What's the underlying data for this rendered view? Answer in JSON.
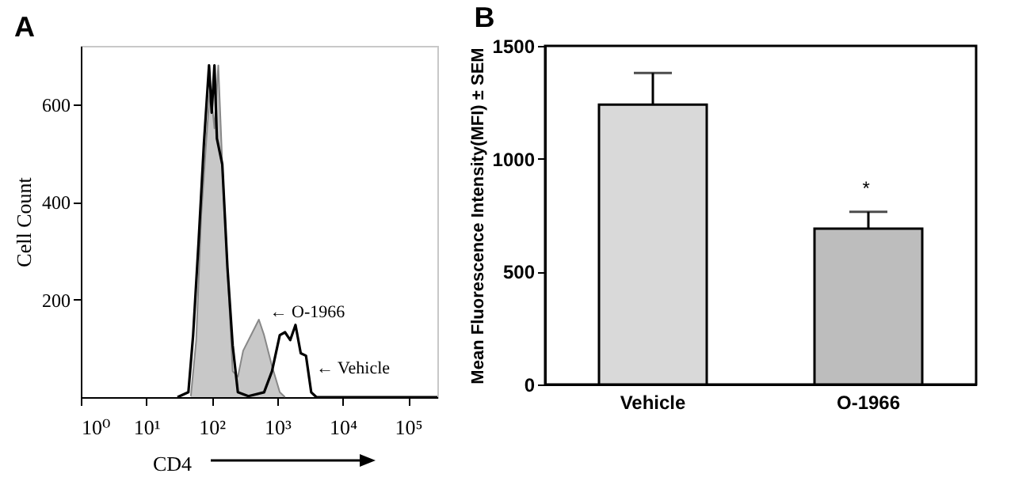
{
  "chart_data": [
    {
      "type": "line",
      "title": "A",
      "xlabel": "CD4",
      "ylabel": "Cell Count",
      "log": "x",
      "xlim": [
        1,
        280000
      ],
      "ylim": [
        0,
        720
      ],
      "xticks": [
        {
          "value": 1,
          "label": "10⁰"
        },
        {
          "value": 10,
          "label": "10¹"
        },
        {
          "value": 100,
          "label": "10²"
        },
        {
          "value": 1000,
          "label": "10³"
        },
        {
          "value": 10000,
          "label": "10⁴"
        },
        {
          "value": 100000,
          "label": "10⁵"
        }
      ],
      "yticks": [
        200,
        400,
        600
      ],
      "series": [
        {
          "type": "area",
          "color": "#c8c8c8",
          "x": [
            48,
            58,
            69,
            83,
            95,
            110,
            126,
            145,
            174,
            209,
            251,
            302,
            398,
            525,
            631,
            832,
            1096,
            1318
          ],
          "values": [
            2,
            117,
            371,
            530,
            636,
            551,
            680,
            477,
            265,
            53,
            42,
            95,
            127,
            159,
            127,
            64,
            10,
            0
          ]
        },
        {
          "color": "#000000",
          "x": [
            30,
            44,
            52,
            63,
            76,
            91,
            100,
            110,
            120,
            145,
            174,
            209,
            251,
            363,
            631,
            832,
            1096,
            1318,
            1585,
            1905,
            2291,
            2754,
            3311,
            3981,
            280000
          ],
          "values": [
            0,
            10,
            127,
            318,
            520,
            680,
            583,
            680,
            530,
            477,
            265,
            106,
            10,
            2,
            10,
            53,
            127,
            133,
            117,
            148,
            90,
            85,
            10,
            0,
            0
          ]
        }
      ],
      "annotations": [
        "← O-1966",
        "← Vehicle"
      ]
    },
    {
      "type": "bar",
      "title": "B",
      "ylabel": "Mean Fluorescence Intensity(MFI) ± SEM",
      "categories": [
        "Vehicle",
        "O-1966"
      ],
      "values": [
        1240,
        690
      ],
      "colors": [
        "#d9d9d9",
        "#bdbdbd"
      ],
      "errors": [
        [
          1240,
          1380
        ],
        [
          690,
          765
        ]
      ],
      "ylim": [
        0,
        1500
      ],
      "yticks": [
        0,
        500,
        {
          "value": 1000,
          "label": "1000"
        },
        {
          "value": 1500,
          "label": "1500"
        }
      ],
      "annotations": [
        "*"
      ]
    }
  ]
}
